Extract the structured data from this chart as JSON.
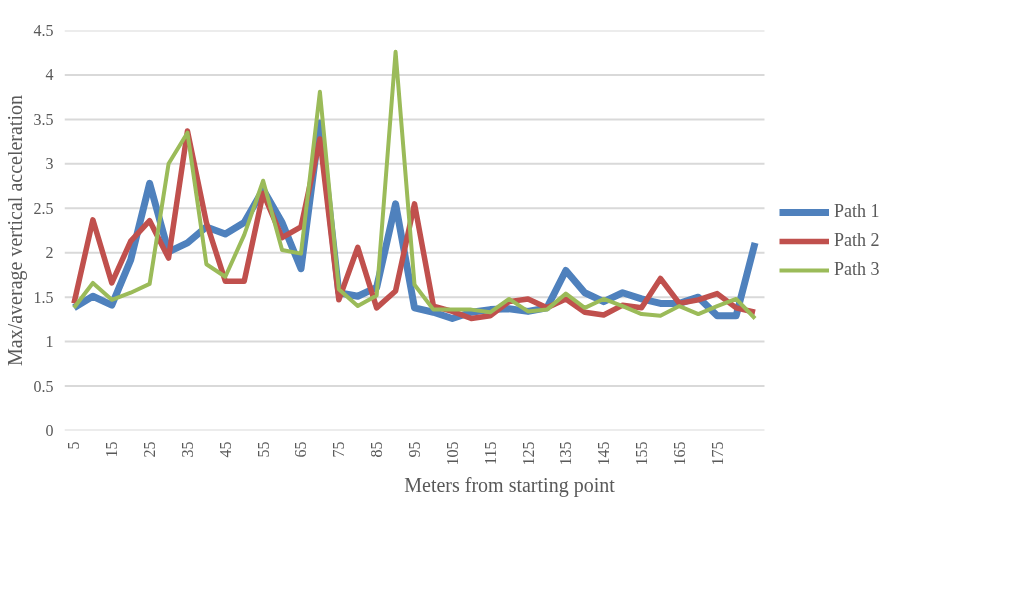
{
  "chart_data": {
    "type": "line",
    "xlabel": "Meters from starting point",
    "ylabel": "Max/average vertical acceleration",
    "categories": [
      "5",
      null,
      "15",
      null,
      "25",
      null,
      "35",
      null,
      "45",
      null,
      "55",
      null,
      "65",
      null,
      "75",
      null,
      "85",
      null,
      "95",
      null,
      "105",
      null,
      "115",
      null,
      "125",
      null,
      "135",
      null,
      "145",
      null,
      "155",
      null,
      "165",
      null,
      "175",
      null,
      null
    ],
    "ylim": [
      0,
      4.5
    ],
    "yticks": [
      0,
      0.5,
      1,
      1.5,
      2,
      2.5,
      3,
      3.5,
      4,
      4.5
    ],
    "grid": "y",
    "legend": "right",
    "marker": "none",
    "line_style": "solid",
    "series": [
      {
        "name": "Path 1",
        "color": "#4f81bd",
        "values": [
          1.38,
          1.51,
          1.41,
          1.92,
          2.78,
          2.01,
          2.11,
          2.29,
          2.21,
          2.34,
          2.71,
          2.34,
          1.82,
          3.46,
          1.55,
          1.51,
          1.61,
          2.55,
          1.38,
          1.33,
          1.26,
          1.33,
          1.36,
          1.37,
          1.34,
          1.38,
          1.8,
          1.55,
          1.45,
          1.55,
          1.48,
          1.43,
          1.43,
          1.5,
          1.29,
          1.29,
          2.11
        ]
      },
      {
        "name": "Path 2",
        "color": "#c0504d",
        "values": [
          1.43,
          2.37,
          1.66,
          2.13,
          2.36,
          1.94,
          3.37,
          2.34,
          1.68,
          1.68,
          2.67,
          2.17,
          2.29,
          3.28,
          1.47,
          2.06,
          1.38,
          1.57,
          2.55,
          1.4,
          1.34,
          1.26,
          1.29,
          1.45,
          1.48,
          1.38,
          1.48,
          1.33,
          1.3,
          1.41,
          1.38,
          1.71,
          1.43,
          1.47,
          1.54,
          1.38,
          1.33
        ]
      },
      {
        "name": "Path 3",
        "color": "#9bbb59",
        "values": [
          1.38,
          1.66,
          1.47,
          1.55,
          1.65,
          3.0,
          3.35,
          1.87,
          1.73,
          2.2,
          2.81,
          2.03,
          1.99,
          3.81,
          1.59,
          1.4,
          1.52,
          4.26,
          1.64,
          1.36,
          1.36,
          1.36,
          1.33,
          1.48,
          1.34,
          1.36,
          1.54,
          1.38,
          1.48,
          1.4,
          1.31,
          1.29,
          1.4,
          1.31,
          1.4,
          1.48,
          1.26
        ]
      }
    ]
  }
}
